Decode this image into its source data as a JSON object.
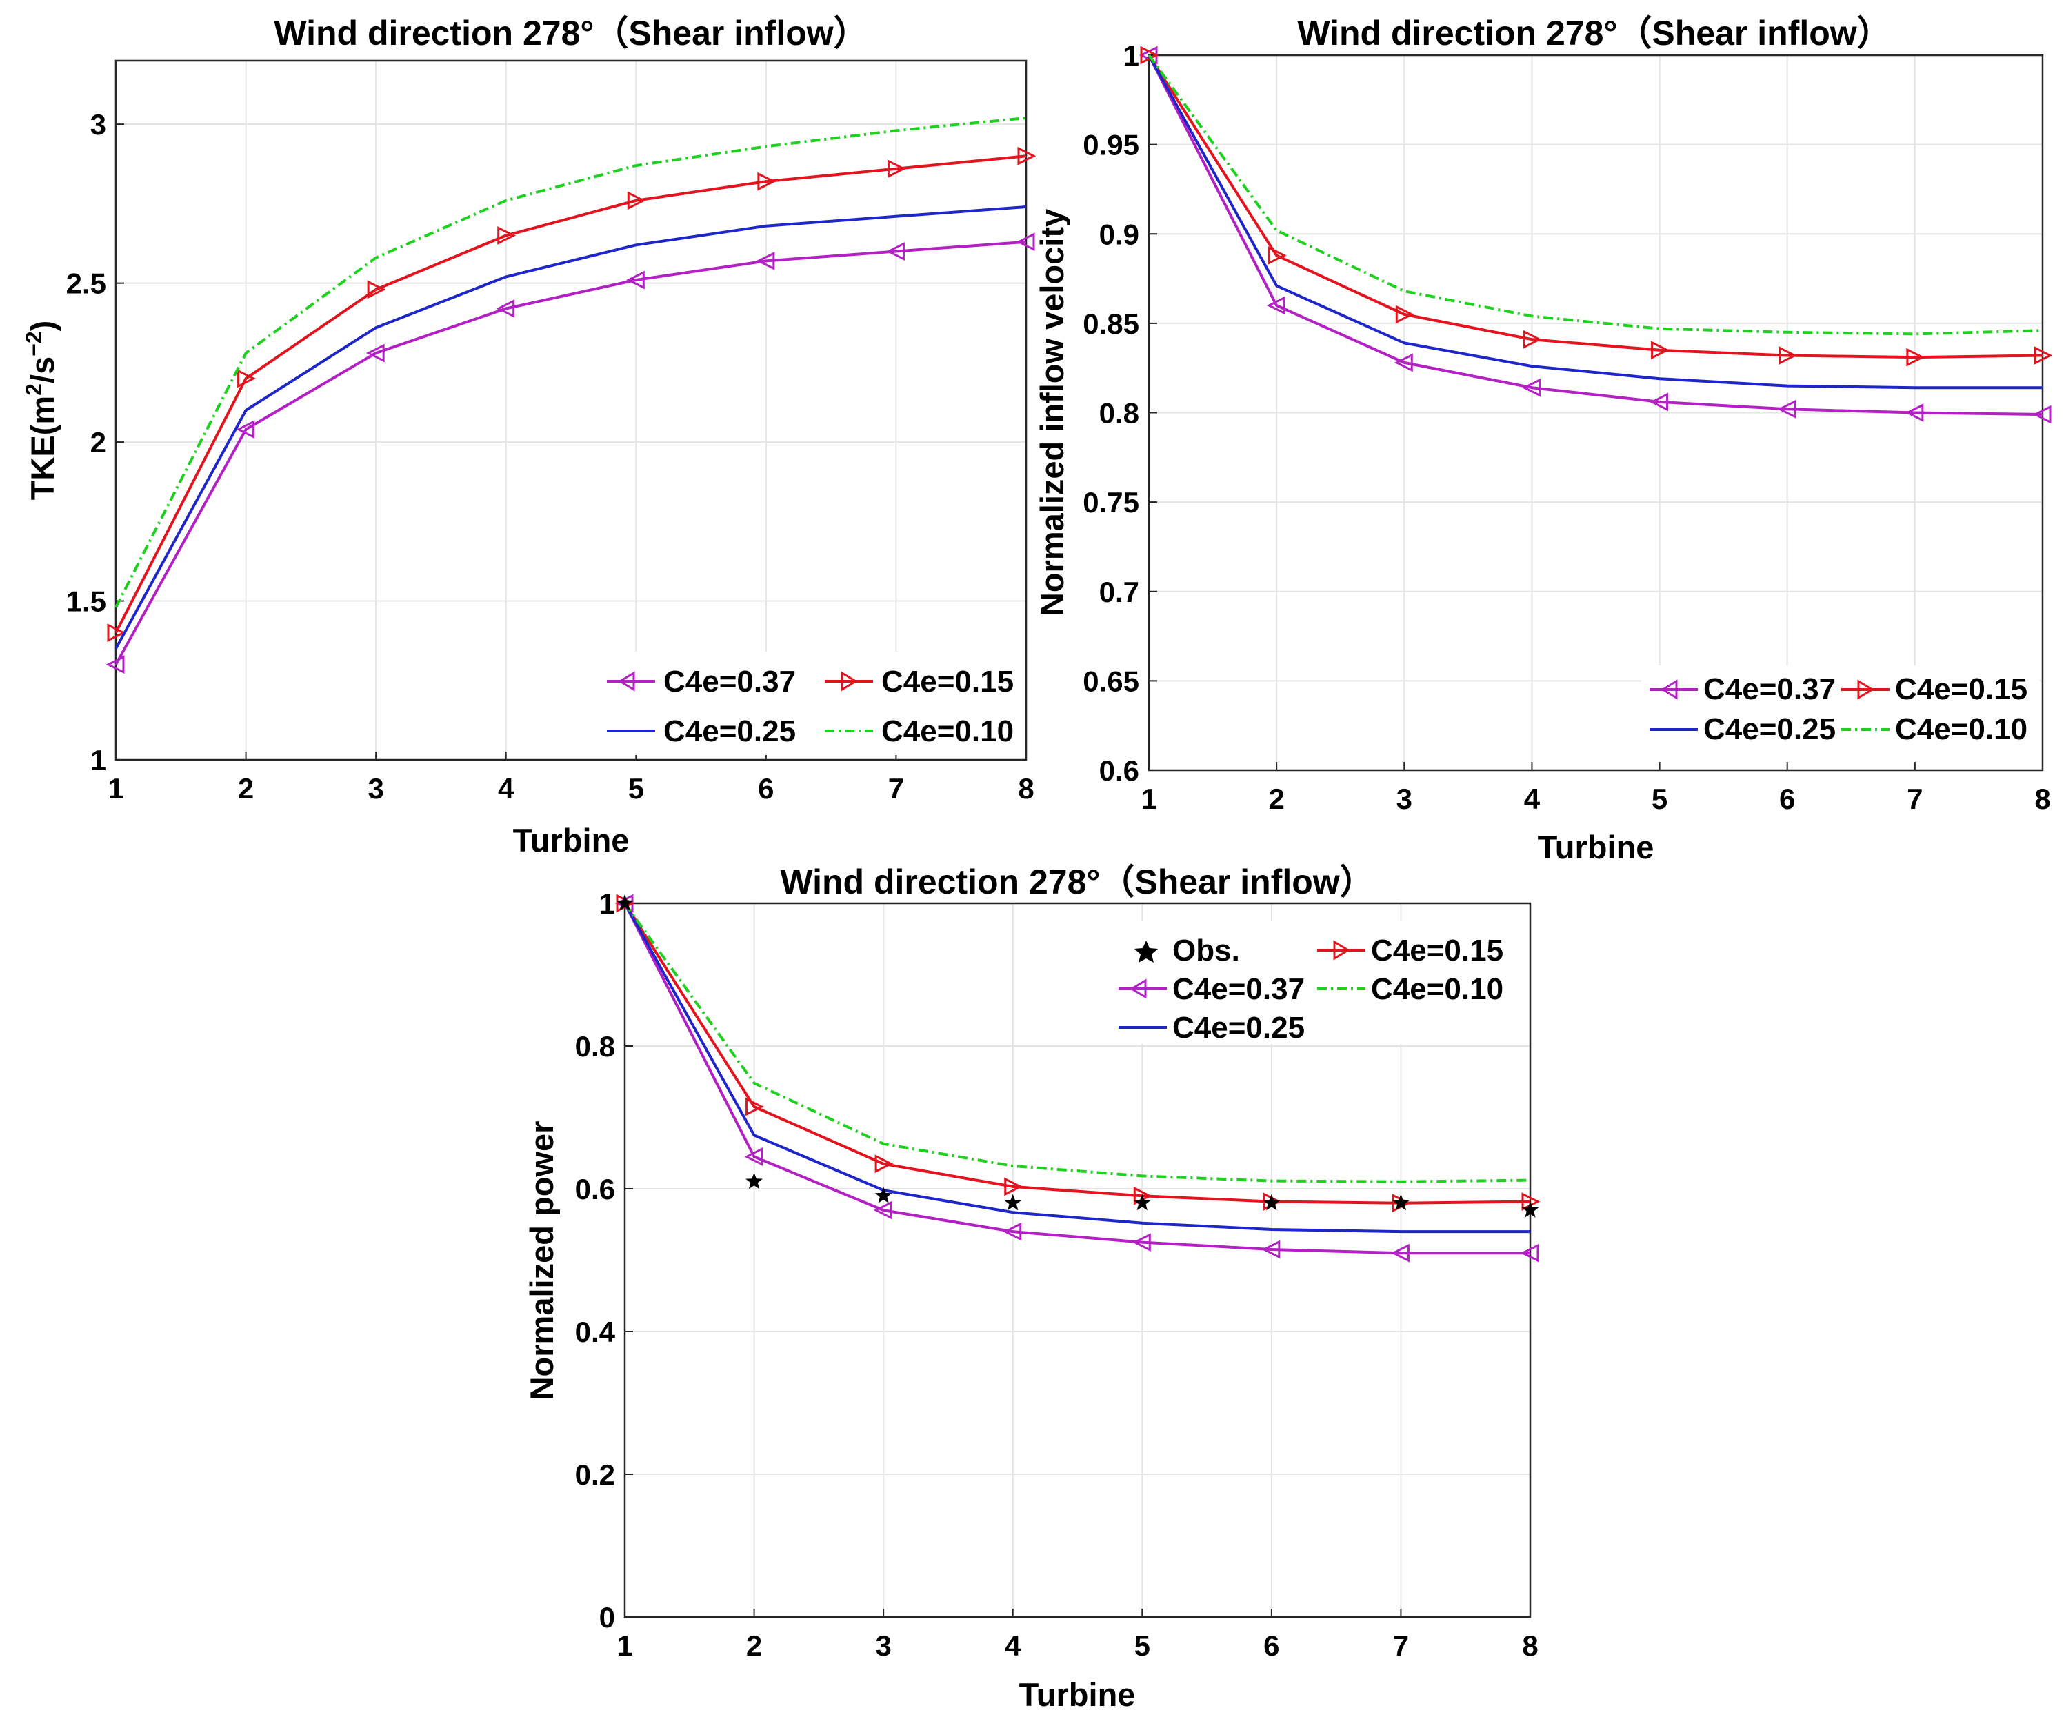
{
  "figure": {
    "colors": {
      "C4e=0.37": "#b321c4",
      "C4e=0.15": "#e3141e",
      "C4e=0.25": "#1f26c9",
      "C4e=0.10": "#1fd11f",
      "Obs.": "#000000"
    }
  },
  "chart_data": [
    {
      "type": "line",
      "title": "Wind direction 278°（Shear inflow）",
      "xlabel": "Turbine",
      "ylabel": "TKE(m²/s⁻²)",
      "ylabel_base": "TKE(m",
      "ylabel_sup1": "2",
      "ylabel_mid": "/s",
      "ylabel_sup2": "−2",
      "ylabel_end": ")",
      "x": [
        1,
        2,
        3,
        4,
        5,
        6,
        7,
        8
      ],
      "xlim": [
        1,
        8
      ],
      "ylim": [
        1,
        3.2
      ],
      "xticks": [
        "1",
        "2",
        "3",
        "4",
        "5",
        "6",
        "7",
        "8"
      ],
      "yticks": [
        "1",
        "1.5",
        "2",
        "2.5",
        "3"
      ],
      "series": [
        {
          "name": "C4e=0.37",
          "values": [
            1.3,
            2.04,
            2.28,
            2.42,
            2.51,
            2.57,
            2.6,
            2.63
          ]
        },
        {
          "name": "C4e=0.15",
          "values": [
            1.4,
            2.2,
            2.48,
            2.65,
            2.76,
            2.82,
            2.86,
            2.9
          ]
        },
        {
          "name": "C4e=0.25",
          "values": [
            1.35,
            2.1,
            2.36,
            2.52,
            2.62,
            2.68,
            2.71,
            2.74
          ]
        },
        {
          "name": "C4e=0.10",
          "values": [
            1.48,
            2.28,
            2.58,
            2.76,
            2.87,
            2.93,
            2.98,
            3.02
          ]
        }
      ],
      "legend": "bottom-right"
    },
    {
      "type": "line",
      "title": "Wind direction 278°（Shear inflow）",
      "xlabel": "Turbine",
      "ylabel": "Normalized inflow velocity",
      "x": [
        1,
        2,
        3,
        4,
        5,
        6,
        7,
        8
      ],
      "xlim": [
        1,
        8
      ],
      "ylim": [
        0.6,
        1.0
      ],
      "xticks": [
        "1",
        "2",
        "3",
        "4",
        "5",
        "6",
        "7",
        "8"
      ],
      "yticks": [
        "0.6",
        "0.65",
        "0.7",
        "0.75",
        "0.8",
        "0.85",
        "0.9",
        "0.95",
        "1"
      ],
      "series": [
        {
          "name": "C4e=0.37",
          "values": [
            1.0,
            0.86,
            0.828,
            0.814,
            0.806,
            0.802,
            0.8,
            0.799
          ]
        },
        {
          "name": "C4e=0.15",
          "values": [
            1.0,
            0.888,
            0.855,
            0.841,
            0.835,
            0.832,
            0.831,
            0.832
          ]
        },
        {
          "name": "C4e=0.25",
          "values": [
            1.0,
            0.871,
            0.839,
            0.826,
            0.819,
            0.815,
            0.814,
            0.814
          ]
        },
        {
          "name": "C4e=0.10",
          "values": [
            1.0,
            0.902,
            0.868,
            0.854,
            0.847,
            0.845,
            0.844,
            0.846
          ]
        }
      ],
      "legend": "bottom-right"
    },
    {
      "type": "line",
      "title": "Wind direction 278°（Shear inflow）",
      "xlabel": "Turbine",
      "ylabel": "Normalized power",
      "x": [
        1,
        2,
        3,
        4,
        5,
        6,
        7,
        8
      ],
      "xlim": [
        1,
        8
      ],
      "ylim": [
        0,
        1.0
      ],
      "xticks": [
        "1",
        "2",
        "3",
        "4",
        "5",
        "6",
        "7",
        "8"
      ],
      "yticks": [
        "0",
        "0.2",
        "0.4",
        "0.6",
        "0.8",
        "1"
      ],
      "observations": {
        "name": "Obs.",
        "values": [
          1.0,
          0.61,
          0.59,
          0.58,
          0.58,
          0.58,
          0.58,
          0.57
        ]
      },
      "series": [
        {
          "name": "C4e=0.37",
          "values": [
            1.0,
            0.645,
            0.57,
            0.54,
            0.525,
            0.515,
            0.51,
            0.51
          ]
        },
        {
          "name": "C4e=0.15",
          "values": [
            1.0,
            0.715,
            0.635,
            0.603,
            0.59,
            0.582,
            0.58,
            0.582
          ]
        },
        {
          "name": "C4e=0.25",
          "values": [
            1.0,
            0.675,
            0.598,
            0.567,
            0.552,
            0.543,
            0.54,
            0.54
          ]
        },
        {
          "name": "C4e=0.10",
          "values": [
            1.0,
            0.748,
            0.663,
            0.632,
            0.618,
            0.611,
            0.61,
            0.612
          ]
        }
      ],
      "legend": "top-right"
    }
  ]
}
